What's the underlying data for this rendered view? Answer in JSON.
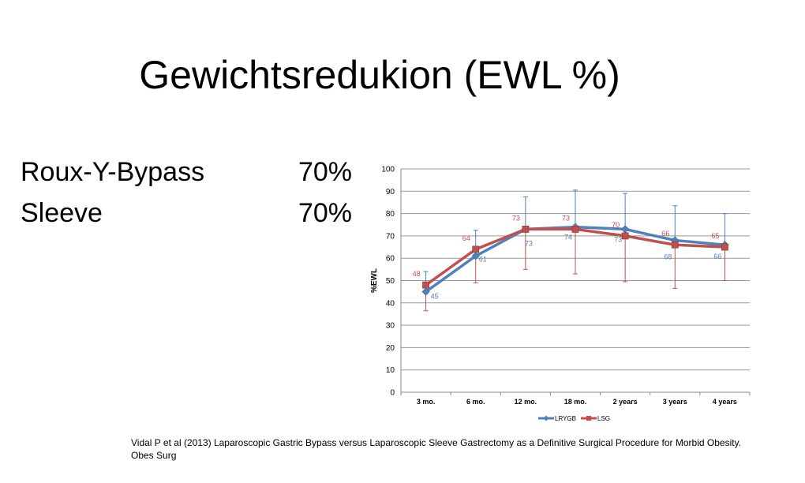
{
  "title": "Gewichtsredukion (EWL %)",
  "stats": [
    {
      "label": "Roux-Y-Bypass",
      "value": "70%"
    },
    {
      "label": "Sleeve",
      "value": "70%"
    }
  ],
  "chart_data": {
    "type": "line",
    "categories": [
      "3 mo.",
      "6 mo.",
      "12 mo.",
      "18 mo.",
      "2 years",
      "3 years",
      "4 years"
    ],
    "ylabel": "%EWL",
    "xlabel": "",
    "ylim": [
      0,
      100
    ],
    "yticks": [
      0,
      10,
      20,
      30,
      40,
      50,
      60,
      70,
      80,
      90,
      100
    ],
    "grid": true,
    "legend_position": "bottom",
    "series": [
      {
        "name": "LRYGB",
        "color": "#4f81bd",
        "values": [
          45,
          61,
          73,
          74,
          73,
          68,
          66
        ],
        "error_upper": [
          54,
          72.5,
          87.5,
          90.5,
          89,
          83.5,
          80
        ],
        "labels": [
          "45",
          "61",
          "73",
          "74",
          "73",
          "68",
          "66"
        ]
      },
      {
        "name": "LSG",
        "color": "#c0504d",
        "values": [
          48,
          64,
          73,
          73,
          70,
          66,
          65
        ],
        "error_lower": [
          36.5,
          49,
          55,
          53,
          49.5,
          46.5,
          50
        ],
        "labels": [
          "48",
          "64",
          "73",
          "73",
          "70",
          "66",
          "65"
        ]
      }
    ]
  },
  "citation": "Vidal P et al (2013) Laparoscopic Gastric Bypass versus Laparoscopic Sleeve Gastrectomy as a Definitive Surgical Procedure for Morbid Obesity. Obes Surg"
}
